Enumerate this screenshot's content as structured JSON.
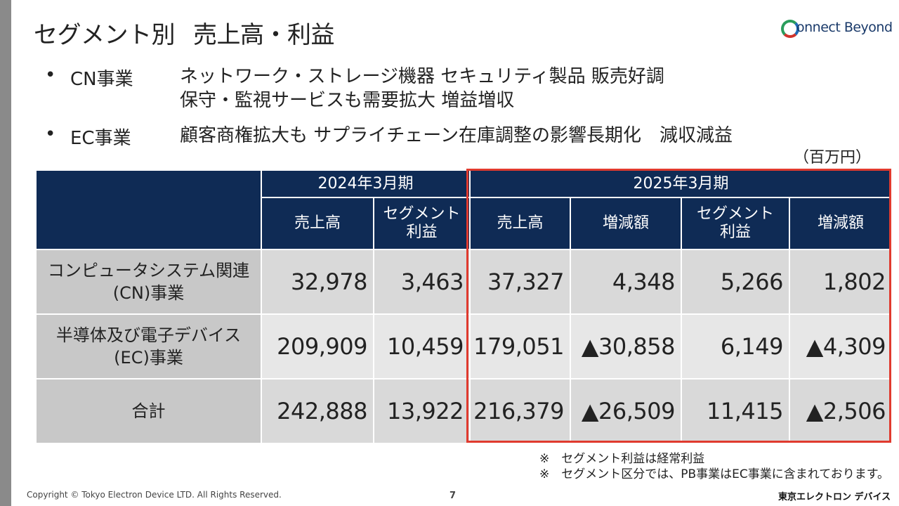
{
  "title": {
    "main": "セグメント別",
    "sub": "売上高・利益"
  },
  "logo": {
    "text": "onnect Beyond",
    "icon": "connect-beyond-logo-icon"
  },
  "bullets": [
    {
      "dot": "•",
      "name": "CN事業",
      "lines": [
        "ネットワーク・ストレージ機器 セキュリティ製品 販売好調",
        "保守・監視サービスも需要拡大 増益増収"
      ]
    },
    {
      "dot": "•",
      "name": "EC事業",
      "lines": [
        "顧客商権拡大も サプライチェーン在庫調整の影響長期化　減収減益"
      ]
    }
  ],
  "unit": "（百万円）",
  "table": {
    "period_prev": "2024年3月期",
    "period_curr": "2025年3月期",
    "col_sales": "売上高",
    "col_profit_l1": "セグメント",
    "col_profit_l2": "利益",
    "col_change": "増減額",
    "rows": [
      {
        "label_l1": "コンピュータシステム関連",
        "label_l2": "(CN)事業",
        "v": [
          "32,978",
          "3,463",
          "37,327",
          "4,348",
          "5,266",
          "1,802"
        ]
      },
      {
        "label_l1": "半導体及び電子デバイス",
        "label_l2": "(EC)事業",
        "v": [
          "209,909",
          "10,459",
          "179,051",
          "▲30,858",
          "6,149",
          "▲4,309"
        ]
      },
      {
        "label_l1": "合計",
        "label_l2": "",
        "v": [
          "242,888",
          "13,922",
          "216,379",
          "▲26,509",
          "11,415",
          "▲2,506"
        ]
      }
    ]
  },
  "notes": [
    "※　セグメント利益は経常利益",
    "※　セグメント区分では、PB事業はEC事業に含まれております。"
  ],
  "footer": {
    "copyright": "Copyright © Tokyo Electron Device LTD. All Rights Reserved.",
    "page": "7",
    "brand": "東京エレクトロン デバイス"
  },
  "colors": {
    "header_bg": "#0f2b55",
    "highlight_border": "#e03a2e",
    "label_bg": "#c8c8c8"
  }
}
